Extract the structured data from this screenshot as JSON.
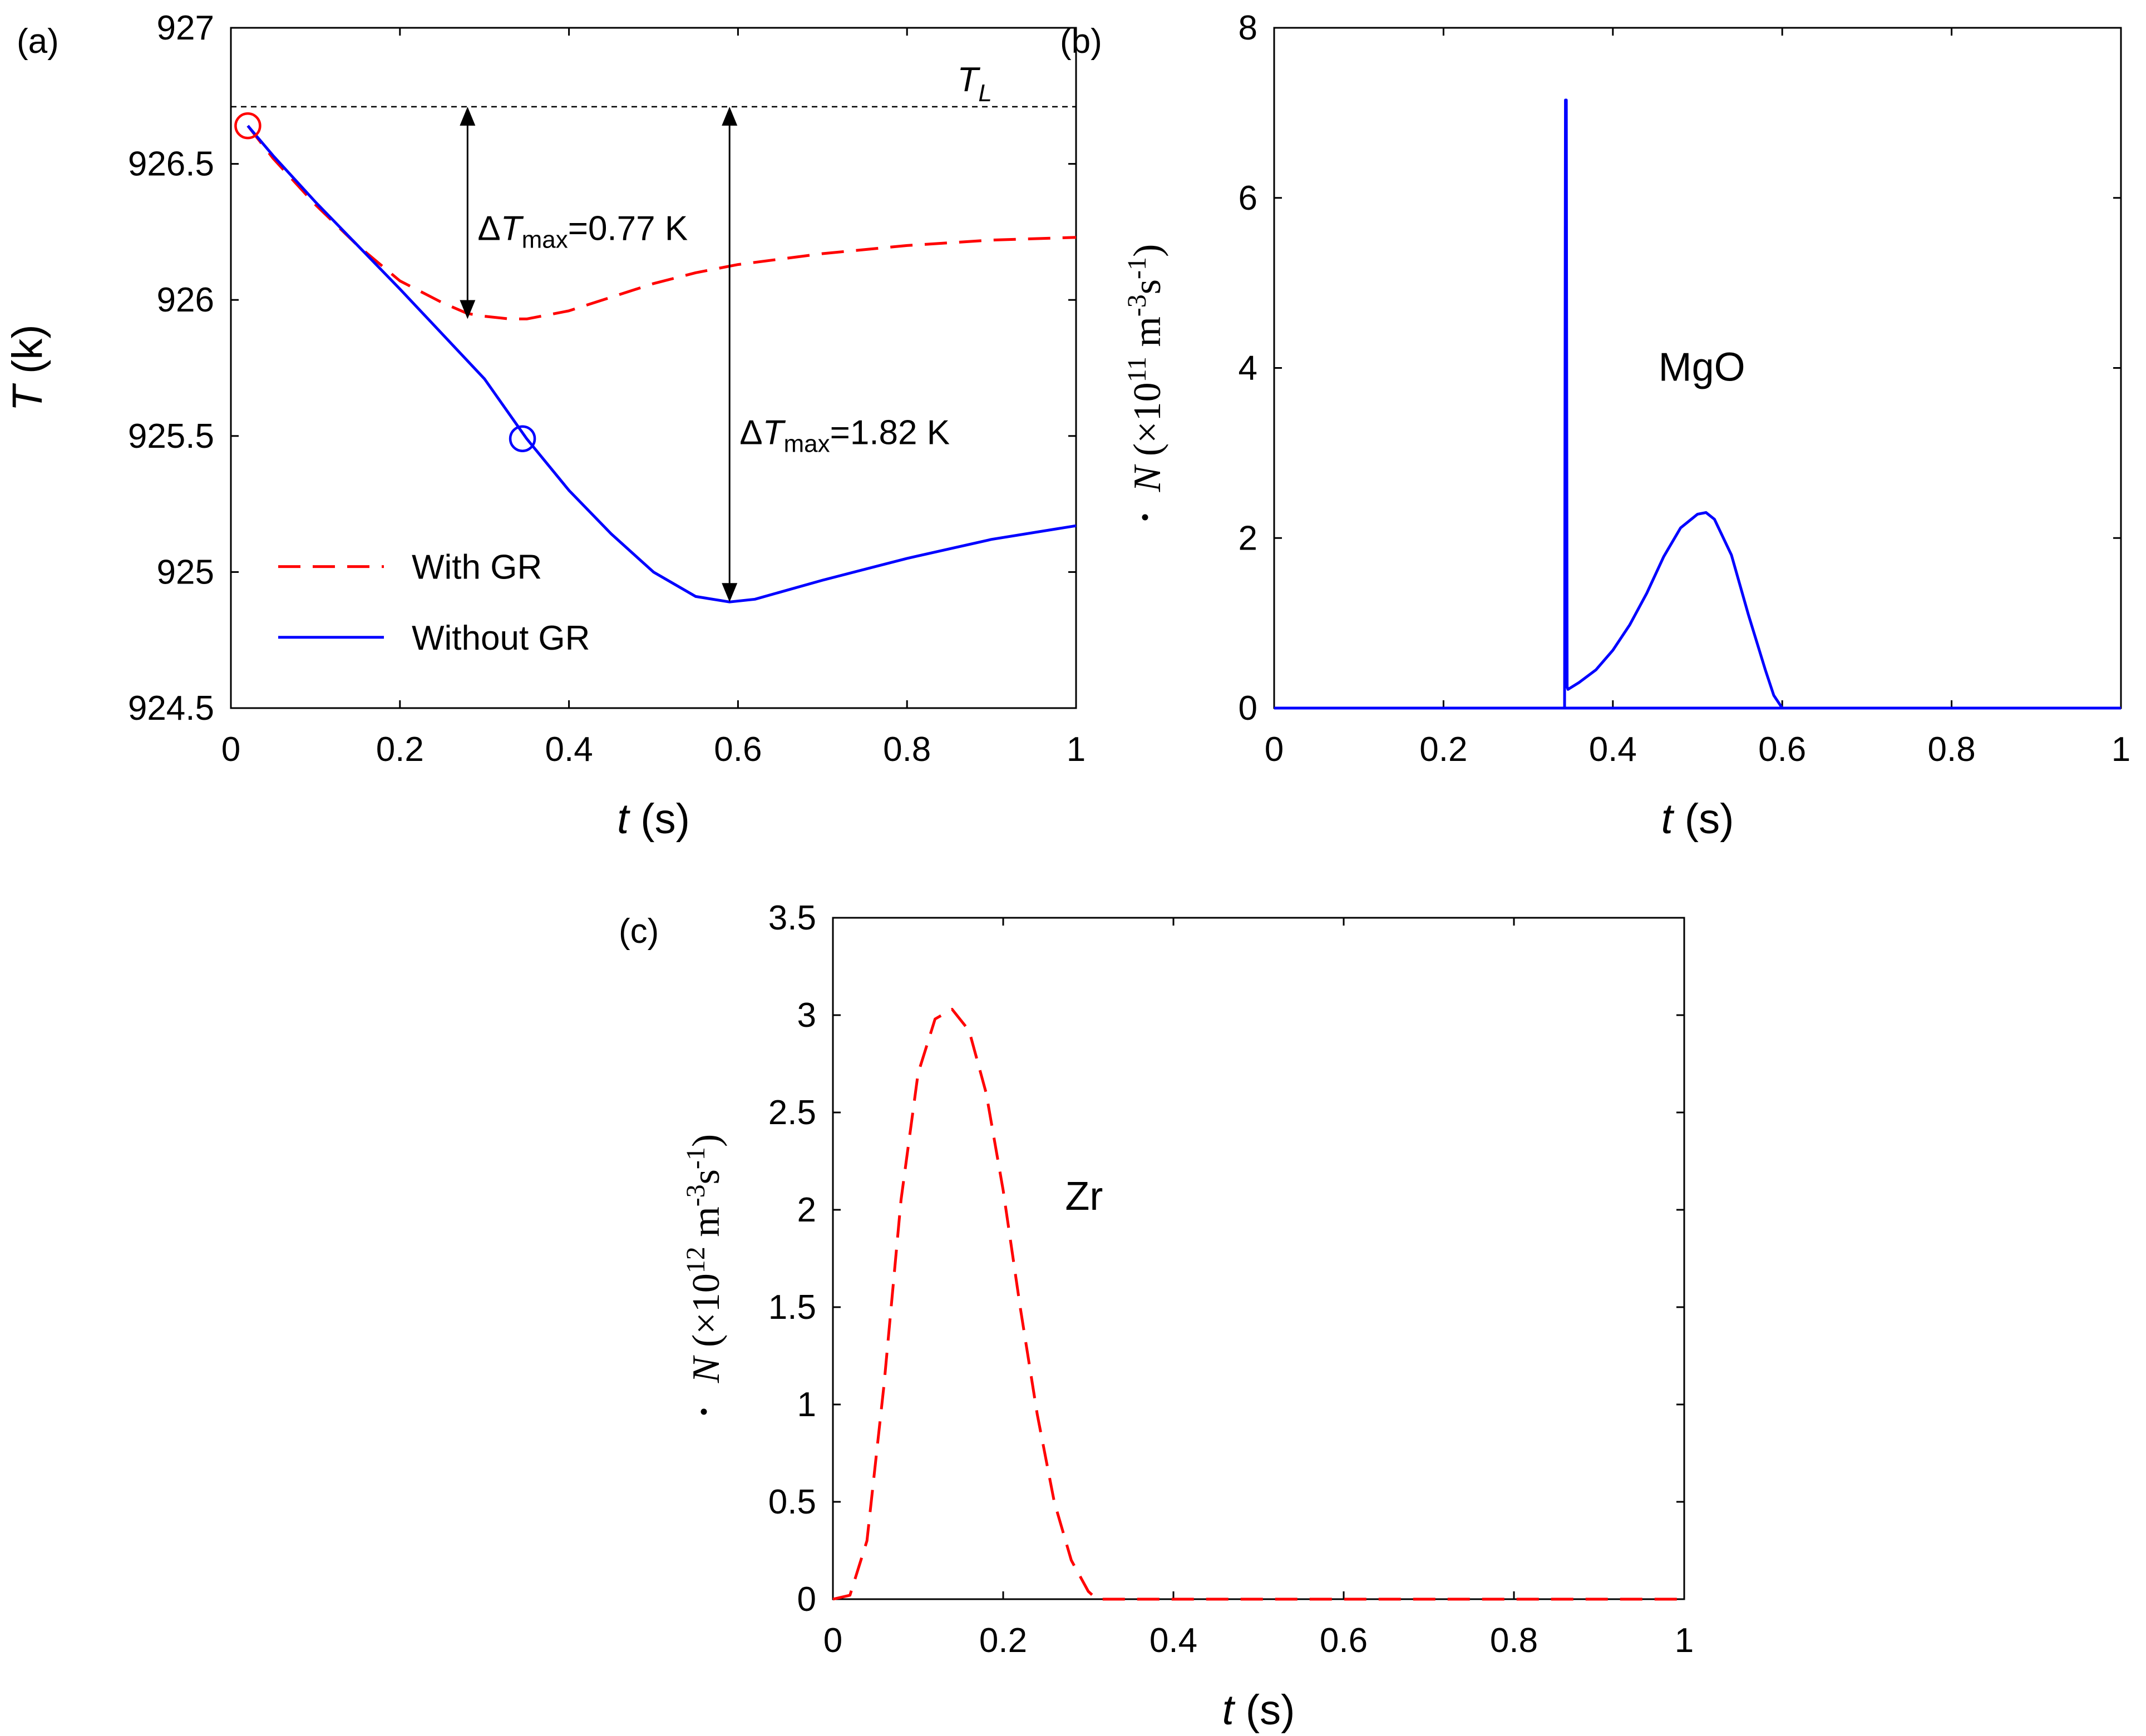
{
  "chart_data": [
    {
      "panel": "(a)",
      "type": "line",
      "xlabel": {
        "var": "t",
        "unit": "(s)"
      },
      "ylabel": {
        "var": "T",
        "unit": "(k)"
      },
      "xlim": [
        0,
        1
      ],
      "ylim": [
        924.5,
        927
      ],
      "xticks": [
        "0",
        "0.2",
        "0.4",
        "0.6",
        "0.8",
        "1"
      ],
      "yticks": [
        "924.5",
        "925",
        "925.5",
        "926",
        "926.5",
        "927"
      ],
      "liquidus": {
        "label": "T",
        "sub": "L",
        "value": 926.71
      },
      "series": [
        {
          "name": "With GR",
          "color": "#ff0000",
          "dashed": true,
          "x": [
            0.02,
            0.05,
            0.1,
            0.15,
            0.2,
            0.25,
            0.28,
            0.3,
            0.33,
            0.35,
            0.4,
            0.45,
            0.5,
            0.55,
            0.6,
            0.7,
            0.8,
            0.9,
            1.0
          ],
          "y": [
            926.64,
            926.52,
            926.35,
            926.2,
            926.07,
            925.99,
            925.95,
            925.94,
            925.93,
            925.93,
            925.96,
            926.01,
            926.06,
            926.1,
            926.13,
            926.17,
            926.2,
            926.22,
            926.23
          ]
        },
        {
          "name": "Without GR",
          "color": "#0000ff",
          "dashed": false,
          "x": [
            0.02,
            0.05,
            0.1,
            0.2,
            0.3,
            0.35,
            0.4,
            0.45,
            0.5,
            0.55,
            0.59,
            0.62,
            0.7,
            0.8,
            0.9,
            1.0
          ],
          "y": [
            926.64,
            926.53,
            926.36,
            926.04,
            925.71,
            925.49,
            925.3,
            925.14,
            925.0,
            924.91,
            924.89,
            924.9,
            924.97,
            925.05,
            925.12,
            925.17
          ]
        }
      ],
      "markers": [
        {
          "series": "With GR",
          "x": 0.02,
          "y": 926.64,
          "color": "#ff0000"
        },
        {
          "series": "Without GR",
          "x": 0.345,
          "y": 925.49,
          "color": "#0000ff"
        }
      ],
      "annotations": [
        {
          "label": "ΔT",
          "sub": "max",
          "value": "=0.77 K",
          "x": 0.28,
          "from": 926.71,
          "to": 925.93
        },
        {
          "label": "ΔT",
          "sub": "max",
          "value": "=1.82 K",
          "x": 0.59,
          "from": 926.71,
          "to": 924.89
        }
      ],
      "legend": {
        "position": "bottom-left",
        "entries": [
          "With GR",
          "Without GR"
        ]
      }
    },
    {
      "panel": "(b)",
      "type": "line",
      "xlabel": {
        "var": "t",
        "unit": "(s)"
      },
      "ylabel": {
        "var": "N",
        "unit": "(×10",
        "exp": "11",
        "units2": " m",
        "exp2": "-3",
        "units3": "s",
        "exp3": "-1",
        "close": ")"
      },
      "xlim": [
        0,
        1
      ],
      "ylim": [
        0,
        8
      ],
      "xticks": [
        "0",
        "0.2",
        "0.4",
        "0.6",
        "0.8",
        "1"
      ],
      "yticks": [
        "0",
        "2",
        "4",
        "6",
        "8"
      ],
      "label": "MgO",
      "series": [
        {
          "name": "MgO",
          "color": "#0000ff",
          "dashed": false,
          "x": [
            0.0,
            0.343,
            0.344,
            0.345,
            0.346,
            0.347,
            0.36,
            0.38,
            0.4,
            0.42,
            0.44,
            0.46,
            0.48,
            0.5,
            0.51,
            0.52,
            0.54,
            0.56,
            0.58,
            0.59,
            0.6,
            1.0
          ],
          "y": [
            0.0,
            0.0,
            7.15,
            7.15,
            0.25,
            0.22,
            0.3,
            0.45,
            0.68,
            0.98,
            1.35,
            1.78,
            2.12,
            2.28,
            2.3,
            2.22,
            1.8,
            1.1,
            0.45,
            0.15,
            0.0,
            0.0
          ]
        }
      ]
    },
    {
      "panel": "(c)",
      "type": "line",
      "xlabel": {
        "var": "t",
        "unit": "(s)"
      },
      "ylabel": {
        "var": "N",
        "unit": "(×10",
        "exp": "12",
        "units2": " m",
        "exp2": "-3",
        "units3": "s",
        "exp3": "-1",
        "close": ")"
      },
      "xlim": [
        0,
        1
      ],
      "ylim": [
        0,
        3.5
      ],
      "xticks": [
        "0",
        "0.2",
        "0.4",
        "0.6",
        "0.8",
        "1"
      ],
      "yticks": [
        "0",
        "0.5",
        "1",
        "1.5",
        "2",
        "2.5",
        "3",
        "3.5"
      ],
      "label": "Zr",
      "series": [
        {
          "name": "Zr",
          "color": "#ff0000",
          "dashed": true,
          "x": [
            0.0,
            0.02,
            0.04,
            0.06,
            0.08,
            0.1,
            0.12,
            0.14,
            0.16,
            0.18,
            0.2,
            0.22,
            0.24,
            0.26,
            0.28,
            0.3,
            0.31,
            1.0
          ],
          "y": [
            0.0,
            0.02,
            0.3,
            1.1,
            2.05,
            2.7,
            2.98,
            3.03,
            2.92,
            2.6,
            2.1,
            1.5,
            0.95,
            0.5,
            0.2,
            0.04,
            0.0,
            0.0
          ]
        }
      ]
    }
  ]
}
